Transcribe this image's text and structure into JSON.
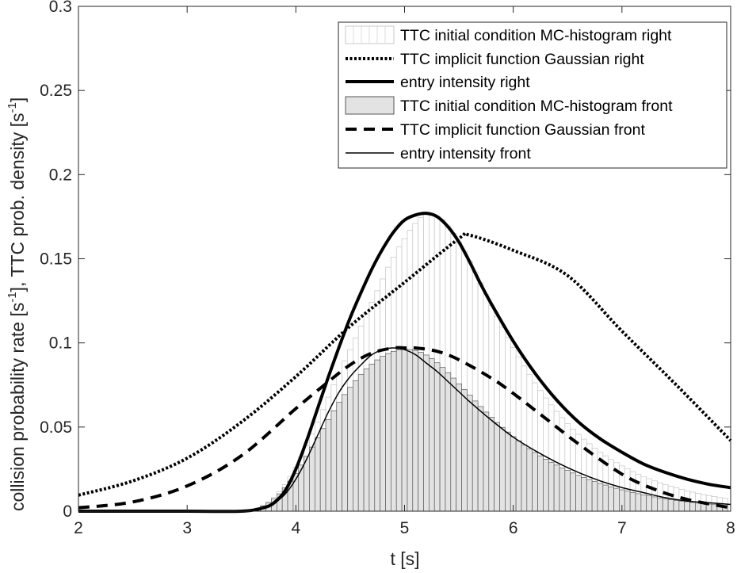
{
  "chart_data": {
    "type": "line",
    "xlabel": "t [s]",
    "ylabel_main": "collision probability rate [s",
    "ylabel_mid": "], TTC prob. density [s",
    "ylabel_end": "]",
    "ylabel_sup": "-1",
    "xlim": [
      2,
      8
    ],
    "ylim": [
      0,
      0.3
    ],
    "xticks": [
      2,
      3,
      4,
      5,
      6,
      7,
      8
    ],
    "yticks": [
      0,
      0.05,
      0.1,
      0.15,
      0.2,
      0.25,
      0.3
    ],
    "xtick_labels": [
      "2",
      "3",
      "4",
      "5",
      "6",
      "7",
      "8"
    ],
    "ytick_labels": [
      "0",
      "0.05",
      "0.1",
      "0.15",
      "0.2",
      "0.25",
      "0.3"
    ],
    "grid": false,
    "legend_position": "top-right",
    "series": [
      {
        "name": "TTC initial condition MC-histogram right",
        "kind": "histogram",
        "bin_width": 0.05,
        "x": [
          3.55,
          3.6,
          3.65,
          3.7,
          3.75,
          3.8,
          3.85,
          3.9,
          3.95,
          4.0,
          4.05,
          4.1,
          4.15,
          4.2,
          4.25,
          4.3,
          4.35,
          4.4,
          4.45,
          4.5,
          4.55,
          4.6,
          4.65,
          4.7,
          4.75,
          4.8,
          4.85,
          4.9,
          4.95,
          5.0,
          5.05,
          5.1,
          5.15,
          5.2,
          5.25,
          5.3,
          5.35,
          5.4,
          5.45,
          5.5,
          5.55,
          5.6,
          5.65,
          5.7,
          5.75,
          5.8,
          5.85,
          5.9,
          5.95,
          6.0,
          6.05,
          6.1,
          6.15,
          6.2,
          6.25,
          6.3,
          6.35,
          6.4,
          6.45,
          6.5,
          6.55,
          6.6,
          6.65,
          6.7,
          6.75,
          6.8,
          6.85,
          6.9,
          6.95,
          7.0,
          7.05,
          7.1,
          7.15,
          7.2,
          7.25,
          7.3,
          7.35,
          7.4,
          7.45,
          7.5,
          7.55,
          7.6,
          7.65,
          7.7,
          7.75,
          7.8,
          7.85,
          7.9,
          7.95
        ],
        "values": [
          0.0003,
          0.0009,
          0.0019,
          0.0035,
          0.0056,
          0.0083,
          0.0117,
          0.0158,
          0.0207,
          0.0262,
          0.0323,
          0.0388,
          0.0458,
          0.053,
          0.0604,
          0.0678,
          0.0751,
          0.0822,
          0.0892,
          0.096,
          0.103,
          0.11,
          0.117,
          0.124,
          0.131,
          0.138,
          0.145,
          0.151,
          0.157,
          0.162,
          0.167,
          0.171,
          0.1745,
          0.177,
          0.177,
          0.1755,
          0.173,
          0.1695,
          0.165,
          0.16,
          0.1545,
          0.1485,
          0.1422,
          0.1356,
          0.1289,
          0.1222,
          0.1157,
          0.1093,
          0.1032,
          0.0973,
          0.0917,
          0.0863,
          0.0812,
          0.0763,
          0.0717,
          0.0673,
          0.0632,
          0.0593,
          0.0556,
          0.0521,
          0.0488,
          0.0457,
          0.0428,
          0.0401,
          0.0375,
          0.0351,
          0.0329,
          0.0307,
          0.0288,
          0.0269,
          0.0252,
          0.0235,
          0.022,
          0.0206,
          0.0193,
          0.018,
          0.0169,
          0.0158,
          0.0148,
          0.0138,
          0.0129,
          0.0121,
          0.0113,
          0.0106,
          0.0099,
          0.0093,
          0.0087,
          0.0081,
          0.0076
        ]
      },
      {
        "name": "TTC implicit function Gaussian right",
        "kind": "line",
        "style": "dotted",
        "width": "thick",
        "x": [
          2.0,
          2.5,
          3.0,
          3.5,
          4.0,
          4.5,
          5.0,
          5.5,
          5.6,
          6.0,
          6.5,
          7.0,
          7.5,
          8.0
        ],
        "y": [
          0.0095,
          0.018,
          0.0315,
          0.053,
          0.08,
          0.11,
          0.136,
          0.162,
          0.164,
          0.155,
          0.14,
          0.107,
          0.075,
          0.042
        ]
      },
      {
        "name": "entry intensity right",
        "kind": "line",
        "style": "solid",
        "width": "thick",
        "x": [
          2.0,
          3.0,
          3.5,
          3.7,
          3.8,
          3.9,
          4.0,
          4.1,
          4.2,
          4.3,
          4.4,
          4.5,
          4.6,
          4.7,
          4.8,
          4.9,
          5.0,
          5.1,
          5.2,
          5.3,
          5.4,
          5.5,
          5.6,
          5.7,
          5.8,
          6.0,
          6.2,
          6.4,
          6.6,
          6.8,
          7.0,
          7.2,
          7.4,
          7.6,
          7.8,
          8.0
        ],
        "y": [
          0.0,
          0.0,
          0.0,
          0.002,
          0.005,
          0.012,
          0.025,
          0.042,
          0.061,
          0.08,
          0.098,
          0.115,
          0.13,
          0.144,
          0.156,
          0.166,
          0.173,
          0.176,
          0.177,
          0.175,
          0.169,
          0.16,
          0.148,
          0.135,
          0.123,
          0.101,
          0.082,
          0.066,
          0.053,
          0.043,
          0.035,
          0.028,
          0.023,
          0.019,
          0.016,
          0.014
        ]
      },
      {
        "name": "TTC initial condition MC-histogram front",
        "kind": "histogram",
        "bin_width": 0.05,
        "x": [
          3.55,
          3.6,
          3.65,
          3.7,
          3.75,
          3.8,
          3.85,
          3.9,
          3.95,
          4.0,
          4.05,
          4.1,
          4.15,
          4.2,
          4.25,
          4.3,
          4.35,
          4.4,
          4.45,
          4.5,
          4.55,
          4.6,
          4.65,
          4.7,
          4.75,
          4.8,
          4.85,
          4.9,
          4.95,
          5.0,
          5.05,
          5.1,
          5.15,
          5.2,
          5.25,
          5.3,
          5.35,
          5.4,
          5.45,
          5.5,
          5.55,
          5.6,
          5.65,
          5.7,
          5.75,
          5.8,
          5.85,
          5.9,
          5.95,
          6.0,
          6.05,
          6.1,
          6.15,
          6.2,
          6.25,
          6.3,
          6.35,
          6.4,
          6.45,
          6.5,
          6.55,
          6.6,
          6.65,
          6.7,
          6.75,
          6.8,
          6.85,
          6.9,
          6.95,
          7.0,
          7.05,
          7.1,
          7.15,
          7.2,
          7.25,
          7.3,
          7.35,
          7.4,
          7.45,
          7.5,
          7.55,
          7.6,
          7.65,
          7.7,
          7.75,
          7.8,
          7.85,
          7.9,
          7.95
        ],
        "values": [
          0.0003,
          0.0008,
          0.0017,
          0.0031,
          0.005,
          0.0074,
          0.0103,
          0.0138,
          0.0178,
          0.0224,
          0.0274,
          0.0326,
          0.0381,
          0.0436,
          0.0491,
          0.0545,
          0.0597,
          0.0647,
          0.0693,
          0.0736,
          0.0776,
          0.0812,
          0.0845,
          0.0874,
          0.0899,
          0.092,
          0.0937,
          0.095,
          0.0958,
          0.0962,
          0.0961,
          0.0955,
          0.0944,
          0.0928,
          0.0907,
          0.0882,
          0.0854,
          0.0823,
          0.0791,
          0.0757,
          0.0723,
          0.0689,
          0.0655,
          0.0622,
          0.0589,
          0.0558,
          0.0527,
          0.0498,
          0.047,
          0.0443,
          0.0418,
          0.0394,
          0.0371,
          0.0349,
          0.0329,
          0.0309,
          0.0291,
          0.0274,
          0.0257,
          0.0242,
          0.0227,
          0.0213,
          0.02,
          0.0188,
          0.0176,
          0.0165,
          0.0155,
          0.0145,
          0.0136,
          0.0127,
          0.0119,
          0.0111,
          0.0104,
          0.0097,
          0.0091,
          0.0085,
          0.0079,
          0.0074,
          0.0069,
          0.0064,
          0.006,
          0.0056,
          0.0052,
          0.0048,
          0.0045,
          0.0042,
          0.0039,
          0.0036,
          0.0034
        ]
      },
      {
        "name": "TTC implicit function Gaussian front",
        "kind": "line",
        "style": "dashed",
        "width": "thick",
        "x": [
          2.0,
          2.5,
          3.0,
          3.5,
          4.0,
          4.3,
          4.5,
          4.7,
          4.9,
          5.0,
          5.1,
          5.3,
          5.5,
          5.8,
          6.0,
          6.3,
          6.6,
          7.0,
          7.3,
          7.6,
          8.0
        ],
        "y": [
          0.002,
          0.0055,
          0.015,
          0.033,
          0.061,
          0.077,
          0.087,
          0.094,
          0.097,
          0.097,
          0.097,
          0.095,
          0.09,
          0.079,
          0.07,
          0.055,
          0.04,
          0.022,
          0.013,
          0.007,
          0.002
        ]
      },
      {
        "name": "entry intensity front",
        "kind": "line",
        "style": "solid",
        "width": "thin",
        "x": [
          2.0,
          3.0,
          3.5,
          3.7,
          3.8,
          3.9,
          4.0,
          4.1,
          4.2,
          4.3,
          4.4,
          4.5,
          4.6,
          4.7,
          4.8,
          4.9,
          5.0,
          5.1,
          5.2,
          5.3,
          5.4,
          5.5,
          5.6,
          5.8,
          6.0,
          6.2,
          6.4,
          6.6,
          6.8,
          7.0,
          7.2,
          7.4,
          7.6,
          7.8,
          8.0
        ],
        "y": [
          0.0,
          0.0,
          0.0,
          0.002,
          0.005,
          0.01,
          0.019,
          0.031,
          0.045,
          0.059,
          0.071,
          0.08,
          0.087,
          0.093,
          0.096,
          0.097,
          0.096,
          0.093,
          0.088,
          0.083,
          0.077,
          0.071,
          0.065,
          0.054,
          0.044,
          0.036,
          0.029,
          0.023,
          0.018,
          0.014,
          0.011,
          0.008,
          0.006,
          0.005,
          0.004
        ]
      }
    ]
  }
}
